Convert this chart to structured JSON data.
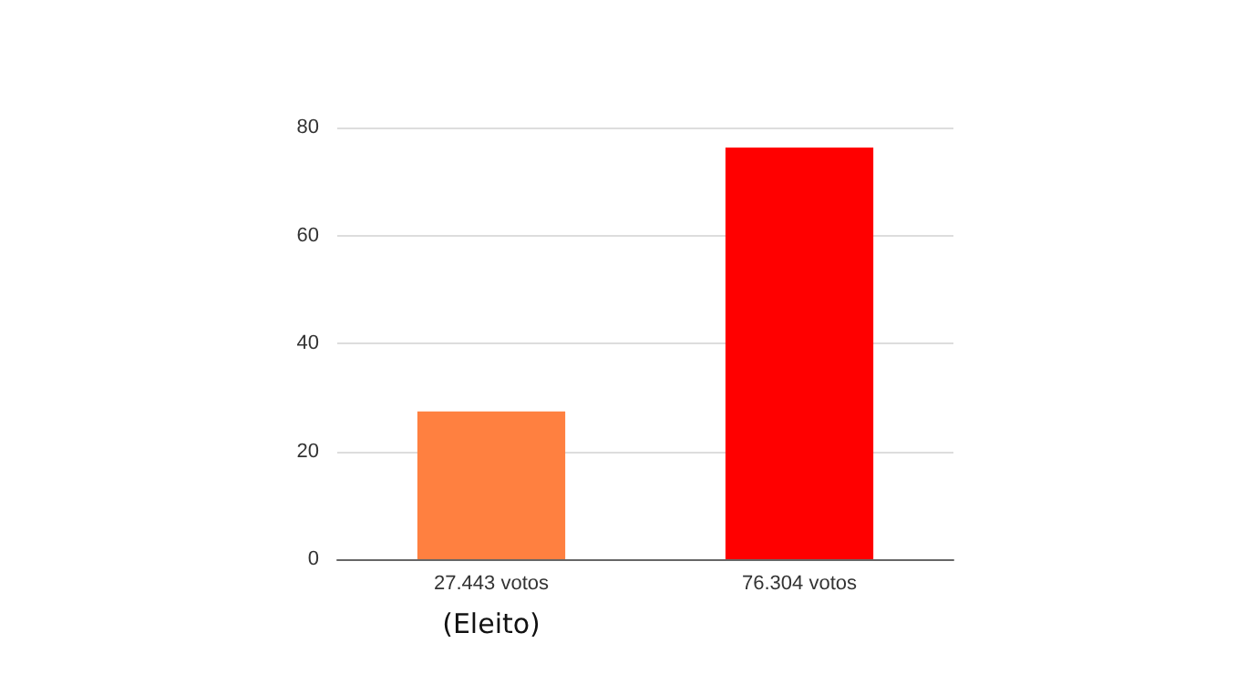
{
  "chart_data": {
    "type": "bar",
    "categories": [
      "27.443 votos",
      "76.304 votos"
    ],
    "values": [
      27.4,
      76.3
    ],
    "colors": [
      "#ff8040",
      "#ff0000"
    ],
    "ylim": [
      0,
      80
    ],
    "yticks": [
      0,
      20,
      40,
      60,
      80
    ],
    "grid": "y",
    "annotations": [
      "(Eleito)"
    ]
  }
}
